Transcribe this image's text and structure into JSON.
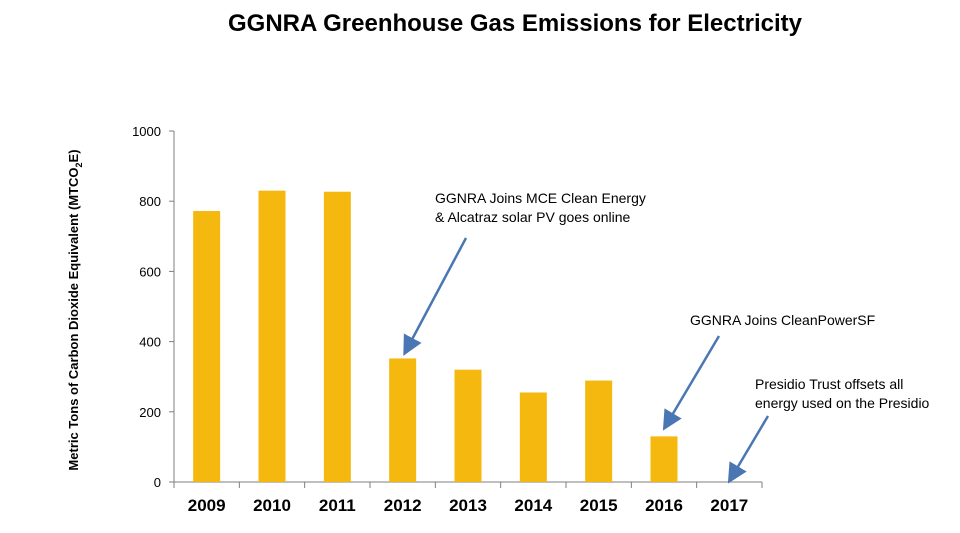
{
  "chart_data": {
    "type": "bar",
    "title": "GGNRA Greenhouse Gas Emissions for Electricity",
    "ylabel_main": "Metric Tons of Carbon Dioxide Equivalent (MTCO",
    "ylabel_sub": "2",
    "ylabel_tail": "E)",
    "xlabel": "",
    "categories": [
      "2009",
      "2010",
      "2011",
      "2012",
      "2013",
      "2014",
      "2015",
      "2016",
      "2017"
    ],
    "values": [
      772,
      830,
      827,
      352,
      320,
      255,
      289,
      130,
      0
    ],
    "ylim": [
      0,
      1000
    ],
    "yticks": [
      0,
      200,
      400,
      600,
      800,
      1000
    ],
    "bar_color": "#F5B80F",
    "arrow_color": "#4A77B4",
    "grid": false,
    "annotations": [
      {
        "lines": [
          "GGNRA Joins MCE Clean Energy",
          "& Alcatraz solar PV goes online"
        ],
        "target_category": "2012"
      },
      {
        "lines": [
          "GGNRA Joins CleanPowerSF"
        ],
        "target_category": "2016"
      },
      {
        "lines": [
          "Presidio Trust offsets all",
          "energy used on the Presidio"
        ],
        "target_category": "2017"
      }
    ]
  }
}
